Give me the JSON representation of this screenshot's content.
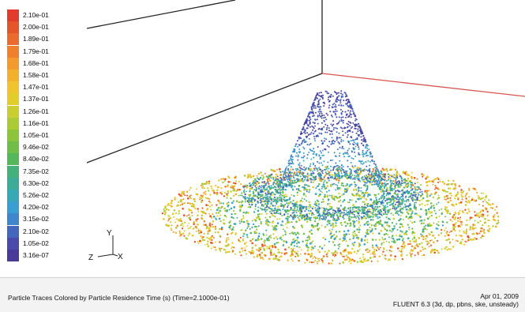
{
  "colorbar": {
    "labels": [
      "2.10e-01",
      "2.00e-01",
      "1.89e-01",
      "1.79e-01",
      "1.68e-01",
      "1.58e-01",
      "1.47e-01",
      "1.37e-01",
      "1.26e-01",
      "1.16e-01",
      "1.05e-01",
      "9.46e-02",
      "8.40e-02",
      "7.35e-02",
      "6.30e-02",
      "5.26e-02",
      "4.20e-02",
      "3.15e-02",
      "2.10e-02",
      "1.05e-02",
      "3.16e-07"
    ],
    "colors": [
      "#e23b2d",
      "#e6542c",
      "#ea6a2f",
      "#ee812f",
      "#f19a2f",
      "#f2b12b",
      "#efc42c",
      "#e2ce28",
      "#c9cf2e",
      "#aacb36",
      "#8cc43e",
      "#70bd4a",
      "#56b65a",
      "#46b07a",
      "#3dab98",
      "#39a8b5",
      "#3a9fd0",
      "#3f86cb",
      "#4567bb",
      "#4a4aa8",
      "#4a3a98"
    ]
  },
  "axes": {
    "y": "Y",
    "z": "Z",
    "x": "X"
  },
  "footer": {
    "caption": "Particle Traces Colored by Particle Residence Time (s)  (Time=2.1000e-01)",
    "date": "Apr 01, 2009",
    "solver": "FLUENT 6.3 (3d, dp, pbns, ske, unsteady)"
  },
  "colors": {
    "background": "#ffffff",
    "box_edges": "#222222",
    "floor_edge": "#d9534f",
    "footer_bg": "#f3f3f3"
  }
}
